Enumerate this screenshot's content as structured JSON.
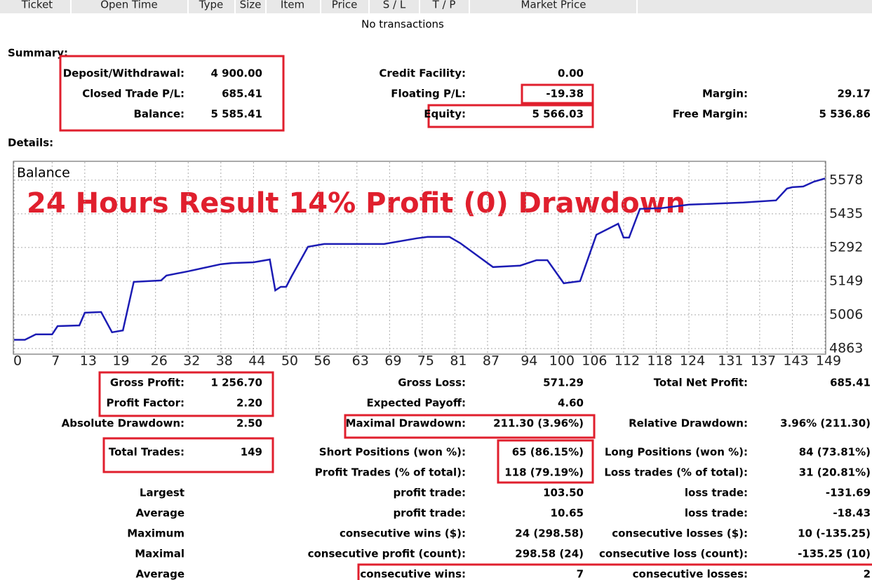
{
  "header": {
    "columns": [
      "Ticket",
      "Open Time",
      "Type",
      "Size",
      "Item",
      "Price",
      "S / L",
      "T / P",
      "Market Price"
    ]
  },
  "empty_note": "No transactions",
  "summary": {
    "title": "Summary:",
    "rows": [
      [
        "Deposit/Withdrawal:",
        "4 900.00",
        "Credit Facility:",
        "0.00",
        null,
        null
      ],
      [
        "Closed Trade P/L:",
        "685.41",
        "Floating P/L:",
        "-19.38",
        "Margin:",
        "29.17"
      ],
      [
        "Balance:",
        "5 585.41",
        "Equity:",
        "5 566.03",
        "Free Margin:",
        "5 536.86"
      ]
    ]
  },
  "details": {
    "title": "Details:"
  },
  "chart_data": {
    "type": "line",
    "annotation": "24 Hours Result 14% Profit (0) Drawdown",
    "x": [
      0,
      2,
      4,
      7,
      8,
      12,
      13,
      16,
      18,
      20,
      22,
      27,
      28,
      32,
      38,
      40,
      44,
      47,
      48,
      49,
      50,
      51,
      54,
      57,
      68,
      74,
      76,
      80,
      82,
      88,
      93,
      96,
      98,
      101,
      104,
      107,
      111,
      112,
      113,
      115,
      119,
      124,
      134,
      140,
      142,
      143,
      145,
      147,
      149
    ],
    "series": [
      {
        "name": "Balance",
        "color": "#1c1cb4",
        "values": [
          4900,
          4900,
          4923,
          4923,
          4958,
          4961,
          5015,
          5018,
          4932,
          4940,
          5146,
          5152,
          5173,
          5191,
          5221,
          5226,
          5229,
          5241,
          5110,
          5125,
          5125,
          5170,
          5295,
          5307,
          5307,
          5331,
          5337,
          5337,
          5310,
          5209,
          5215,
          5238,
          5238,
          5140,
          5149,
          5346,
          5393,
          5334,
          5334,
          5456,
          5459,
          5474,
          5483,
          5492,
          5542,
          5548,
          5551,
          5572,
          5585
        ]
      }
    ],
    "xlim": [
      0,
      149
    ],
    "ylim": [
      4842,
      5655
    ],
    "xticks": [
      0,
      7,
      13,
      19,
      26,
      32,
      38,
      44,
      50,
      56,
      63,
      69,
      75,
      81,
      87,
      94,
      100,
      106,
      112,
      118,
      124,
      131,
      137,
      143,
      149
    ],
    "yticks": [
      4863,
      5006,
      5149,
      5292,
      5435,
      5578
    ],
    "grid": true
  },
  "stats": {
    "rows": [
      [
        "Gross Profit:",
        "1 256.70",
        "Gross Loss:",
        "571.29",
        "Total Net Profit:",
        "685.41"
      ],
      [
        "Profit Factor:",
        "2.20",
        "Expected Payoff:",
        "4.60",
        null,
        null
      ],
      [
        "Absolute Drawdown:",
        "2.50",
        "Maximal Drawdown:",
        "211.30 (3.96%)",
        "Relative Drawdown:",
        "3.96% (211.30)"
      ],
      [
        "Total Trades:",
        "149",
        "Short Positions (won %):",
        "65 (86.15%)",
        "Long Positions (won %):",
        "84 (73.81%)"
      ],
      [
        null,
        null,
        "Profit Trades (% of total):",
        "118 (79.19%)",
        "Loss trades (% of total):",
        "31 (20.81%)"
      ],
      [
        "Largest",
        null,
        "profit trade:",
        "103.50",
        "loss trade:",
        "-131.69"
      ],
      [
        "Average",
        null,
        "profit trade:",
        "10.65",
        "loss trade:",
        "-18.43"
      ],
      [
        "Maximum",
        null,
        "consecutive wins ($):",
        "24 (298.58)",
        "consecutive losses ($):",
        "10 (-135.25)"
      ],
      [
        "Maximal",
        null,
        "consecutive profit (count):",
        "298.58 (24)",
        "consecutive loss (count):",
        "-135.25 (10)"
      ],
      [
        "Average",
        null,
        "consecutive wins:",
        "7",
        "consecutive losses:",
        "2"
      ]
    ]
  }
}
